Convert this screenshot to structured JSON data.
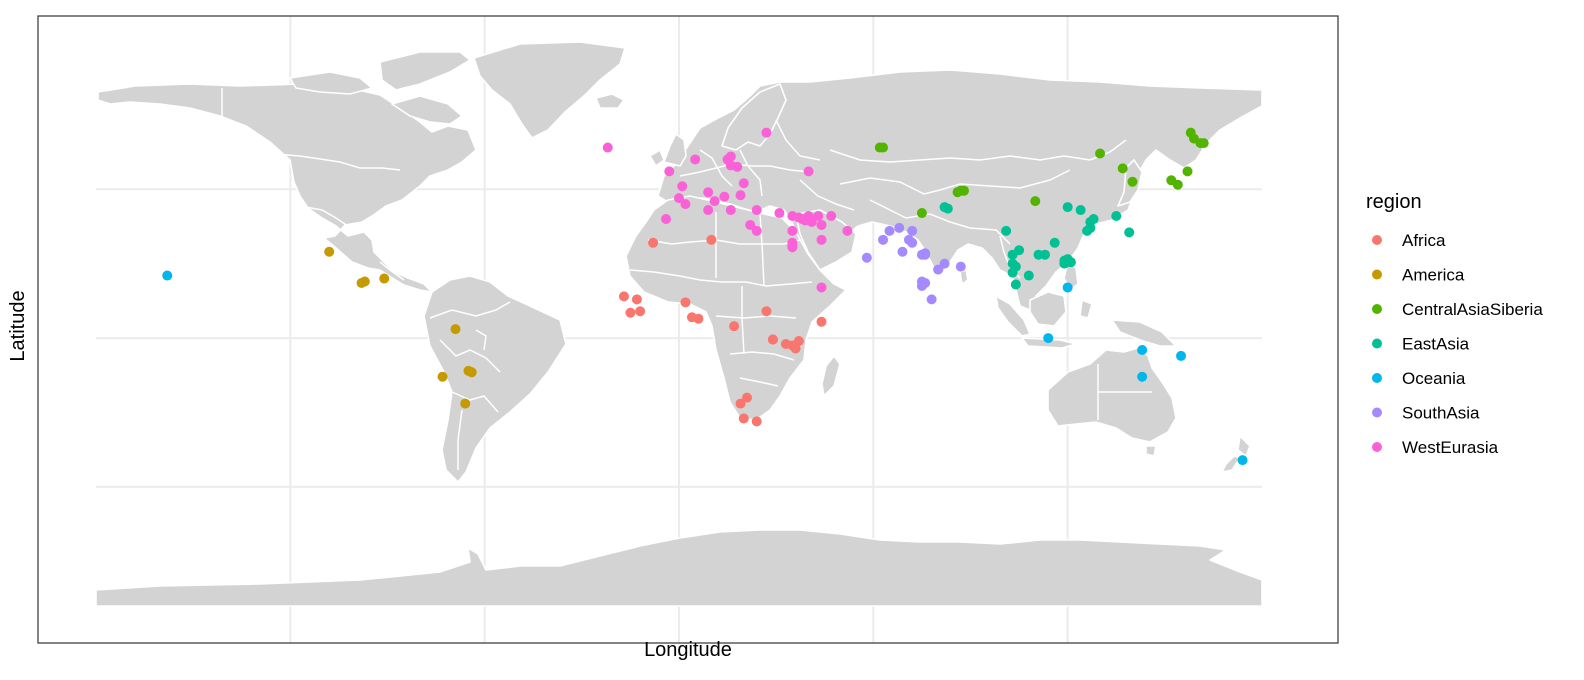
{
  "chart_data": {
    "type": "scatter",
    "title": "",
    "xlabel": "Longitude",
    "ylabel": "Latitude",
    "xlim": [
      -180,
      180
    ],
    "ylim": [
      -90,
      84
    ],
    "x_gridlines": [
      -120,
      -60,
      0,
      60,
      120
    ],
    "y_gridlines": [
      -50,
      0,
      50
    ],
    "grid": true,
    "legend": {
      "title": "region",
      "position": "right"
    },
    "colors": {
      "Africa": "#F8766D",
      "America": "#C49A00",
      "CentralAsiaSiberia": "#53B400",
      "EastAsia": "#00C094",
      "Oceania": "#00B6EB",
      "SouthAsia": "#A58AFF",
      "WestEurasia": "#FB61D7"
    },
    "series": [
      {
        "name": "Africa",
        "points": [
          [
            2,
            12
          ],
          [
            29,
            -0.5
          ],
          [
            -8,
            32
          ],
          [
            -17,
            14
          ],
          [
            -13,
            13
          ],
          [
            -15,
            8.5
          ],
          [
            -12,
            9
          ],
          [
            4,
            7
          ],
          [
            6,
            6.5
          ],
          [
            17,
            4
          ],
          [
            27,
            9
          ],
          [
            29,
            -0.5
          ],
          [
            33,
            -2
          ],
          [
            35,
            -2.5
          ],
          [
            36,
            -3.5
          ],
          [
            37,
            -1
          ],
          [
            44,
            5.5
          ],
          [
            21,
            -20
          ],
          [
            19,
            -22
          ],
          [
            20,
            -27
          ],
          [
            24,
            -28
          ],
          [
            10,
            33
          ]
        ]
      },
      {
        "name": "America",
        "points": [
          [
            -108,
            29
          ],
          [
            -97,
            19
          ],
          [
            -98,
            18.5
          ],
          [
            -91,
            20
          ],
          [
            -69,
            3
          ],
          [
            -73,
            -13
          ],
          [
            -65,
            -11
          ],
          [
            -64,
            -11.5
          ],
          [
            -66,
            -22
          ]
        ]
      },
      {
        "name": "CentralAsiaSiberia",
        "points": [
          [
            62,
            64
          ],
          [
            63,
            64
          ],
          [
            75,
            42
          ],
          [
            86,
            49
          ],
          [
            87,
            49.5
          ],
          [
            88,
            49.5
          ],
          [
            110,
            46
          ],
          [
            130,
            62
          ],
          [
            137,
            57
          ],
          [
            140,
            52.5
          ],
          [
            158,
            69
          ],
          [
            159,
            67
          ],
          [
            161,
            65.5
          ],
          [
            162,
            65.5
          ],
          [
            157,
            56
          ],
          [
            152,
            53
          ],
          [
            154,
            51.5
          ]
        ]
      },
      {
        "name": "EastAsia",
        "points": [
          [
            82,
            44
          ],
          [
            83,
            43.5
          ],
          [
            101,
            36
          ],
          [
            103,
            28
          ],
          [
            103,
            25
          ],
          [
            104,
            24
          ],
          [
            103,
            22
          ],
          [
            104,
            18
          ],
          [
            108,
            21
          ],
          [
            105,
            29.5
          ],
          [
            111,
            28
          ],
          [
            113,
            28
          ],
          [
            116,
            32
          ],
          [
            119,
            26
          ],
          [
            120,
            26.5
          ],
          [
            121,
            25.5
          ],
          [
            119,
            25
          ],
          [
            126,
            36
          ],
          [
            127,
            39
          ],
          [
            128,
            40
          ],
          [
            120,
            44
          ],
          [
            124,
            43
          ],
          [
            135,
            41
          ],
          [
            139,
            35.5
          ],
          [
            127,
            37
          ]
        ]
      },
      {
        "name": "Oceania",
        "points": [
          [
            -158,
            21
          ],
          [
            120,
            17
          ],
          [
            114,
            0
          ],
          [
            143,
            -4
          ],
          [
            155,
            -6
          ],
          [
            143,
            -13
          ],
          [
            174,
            -41
          ]
        ]
      },
      {
        "name": "SouthAsia",
        "points": [
          [
            65,
            36
          ],
          [
            68,
            37
          ],
          [
            72,
            36
          ],
          [
            71,
            33
          ],
          [
            72,
            32
          ],
          [
            63,
            33
          ],
          [
            58,
            27
          ],
          [
            69,
            29
          ],
          [
            75,
            28
          ],
          [
            76,
            28.5
          ],
          [
            76,
            28
          ],
          [
            82,
            25
          ],
          [
            75,
            19
          ],
          [
            76,
            18.5
          ],
          [
            75,
            17.5
          ],
          [
            80,
            23
          ],
          [
            87,
            24
          ],
          [
            78,
            13
          ]
        ]
      },
      {
        "name": "WestEurasia",
        "points": [
          [
            -22,
            64
          ],
          [
            -3,
            56
          ],
          [
            5,
            60
          ],
          [
            15,
            60
          ],
          [
            16,
            58
          ],
          [
            18,
            57.5
          ],
          [
            16,
            61
          ],
          [
            27,
            69
          ],
          [
            40,
            56
          ],
          [
            1,
            51
          ],
          [
            0,
            47
          ],
          [
            2,
            45
          ],
          [
            -4,
            40
          ],
          [
            9,
            49
          ],
          [
            11,
            46
          ],
          [
            14,
            47.5
          ],
          [
            16,
            43
          ],
          [
            19,
            48
          ],
          [
            20,
            52
          ],
          [
            9,
            43
          ],
          [
            24,
            43
          ],
          [
            22,
            38
          ],
          [
            24,
            36
          ],
          [
            31,
            42
          ],
          [
            35,
            41
          ],
          [
            37,
            40.5
          ],
          [
            38,
            40
          ],
          [
            39,
            39.5
          ],
          [
            40,
            41
          ],
          [
            43,
            41
          ],
          [
            47,
            41
          ],
          [
            44,
            38
          ],
          [
            41,
            39
          ],
          [
            35,
            36
          ],
          [
            35,
            32
          ],
          [
            35,
            31
          ],
          [
            35,
            30.5
          ],
          [
            44,
            33
          ],
          [
            52,
            36
          ],
          [
            44,
            17
          ]
        ]
      }
    ]
  }
}
